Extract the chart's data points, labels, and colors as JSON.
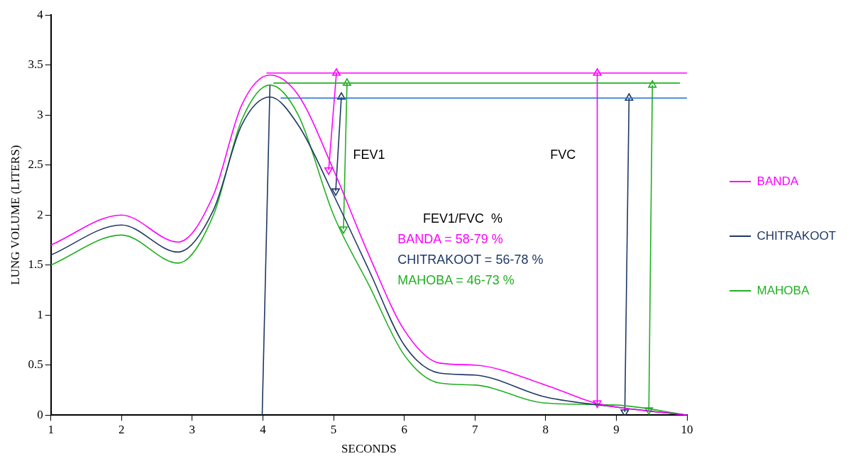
{
  "chart_data": {
    "type": "line",
    "xlabel": "SECONDS",
    "ylabel": "LUNG VOLUME (LITERS)",
    "xlim": [
      1,
      10
    ],
    "ylim": [
      0,
      4
    ],
    "xticks": [
      1,
      2,
      3,
      4,
      5,
      6,
      7,
      8,
      9,
      10
    ],
    "yticks": [
      0,
      0.5,
      1,
      1.5,
      2,
      2.5,
      3,
      3.5,
      4
    ],
    "grid": false,
    "legend": "right",
    "marker": "none",
    "line_style": "solid",
    "series": [
      {
        "name": "BANDA",
        "color": "#ff00ff",
        "x": [
          1,
          2,
          2.8,
          3.3,
          3.7,
          4.1,
          4.5,
          5,
          5.5,
          6,
          6.5,
          7,
          8,
          8.7,
          9,
          10
        ],
        "values": [
          1.7,
          2.0,
          1.73,
          2.2,
          3.1,
          3.4,
          3.2,
          2.45,
          1.6,
          0.85,
          0.52,
          0.5,
          0.3,
          0.12,
          0.08,
          0
        ]
      },
      {
        "name": "CHITRAKOOT",
        "color": "#203864",
        "x": [
          1,
          2,
          2.8,
          3.3,
          3.7,
          4.1,
          4.5,
          5,
          5.5,
          6,
          6.5,
          7,
          8,
          9,
          10
        ],
        "values": [
          1.6,
          1.9,
          1.63,
          2.05,
          2.9,
          3.18,
          2.9,
          2.2,
          1.45,
          0.7,
          0.42,
          0.4,
          0.18,
          0.08,
          0
        ]
      },
      {
        "name": "MAHOBA",
        "color": "#22b022",
        "x": [
          1,
          2,
          2.8,
          3.3,
          3.7,
          4.1,
          4.5,
          5,
          5.5,
          6,
          6.5,
          7,
          8,
          9,
          10
        ],
        "values": [
          1.5,
          1.8,
          1.52,
          2.0,
          2.95,
          3.3,
          3.0,
          2.0,
          1.3,
          0.6,
          0.32,
          0.3,
          0.12,
          0.1,
          0
        ]
      },
      {
        "type": "line",
        "color": "#ff00ff",
        "x": [
          4.05,
          10
        ],
        "values": [
          3.42,
          3.42
        ]
      },
      {
        "type": "line",
        "color": "#22b022",
        "x": [
          4.15,
          9.9
        ],
        "values": [
          3.32,
          3.32
        ]
      },
      {
        "type": "line",
        "color": "#1f6fd0",
        "x": [
          4.25,
          10
        ],
        "values": [
          3.17,
          3.17
        ]
      },
      {
        "type": "line",
        "color": "#203864",
        "x": [
          3.99,
          4.1
        ],
        "values": [
          0,
          3.3
        ]
      },
      {
        "type": "line",
        "marker": "triangle",
        "color": "#ff00ff",
        "x": [
          5.04,
          4.93
        ],
        "values": [
          3.42,
          2.45
        ]
      },
      {
        "type": "line",
        "marker": "triangle",
        "color": "#203864",
        "x": [
          5.11,
          5.03
        ],
        "values": [
          3.18,
          2.24
        ]
      },
      {
        "type": "line",
        "marker": "triangle",
        "color": "#22b022",
        "x": [
          5.19,
          5.14
        ],
        "values": [
          3.32,
          1.86
        ]
      },
      {
        "type": "line",
        "marker": "triangle",
        "color": "#ff00ff",
        "x": [
          8.73,
          8.73
        ],
        "values": [
          3.42,
          0.12
        ]
      },
      {
        "type": "line",
        "marker": "triangle",
        "color": "#203864",
        "x": [
          9.18,
          9.12
        ],
        "values": [
          3.17,
          0.03
        ]
      },
      {
        "type": "line",
        "marker": "triangle",
        "color": "#22b022",
        "x": [
          9.51,
          9.46
        ],
        "values": [
          3.3,
          0.05
        ]
      }
    ],
    "annotations": [
      "FEV1",
      "FVC",
      "FEV1/FVC  %",
      "BANDA = 58-79 %",
      "CHITRAKOOT = 56-78 %",
      "MAHOBA = 46-73 %"
    ]
  }
}
